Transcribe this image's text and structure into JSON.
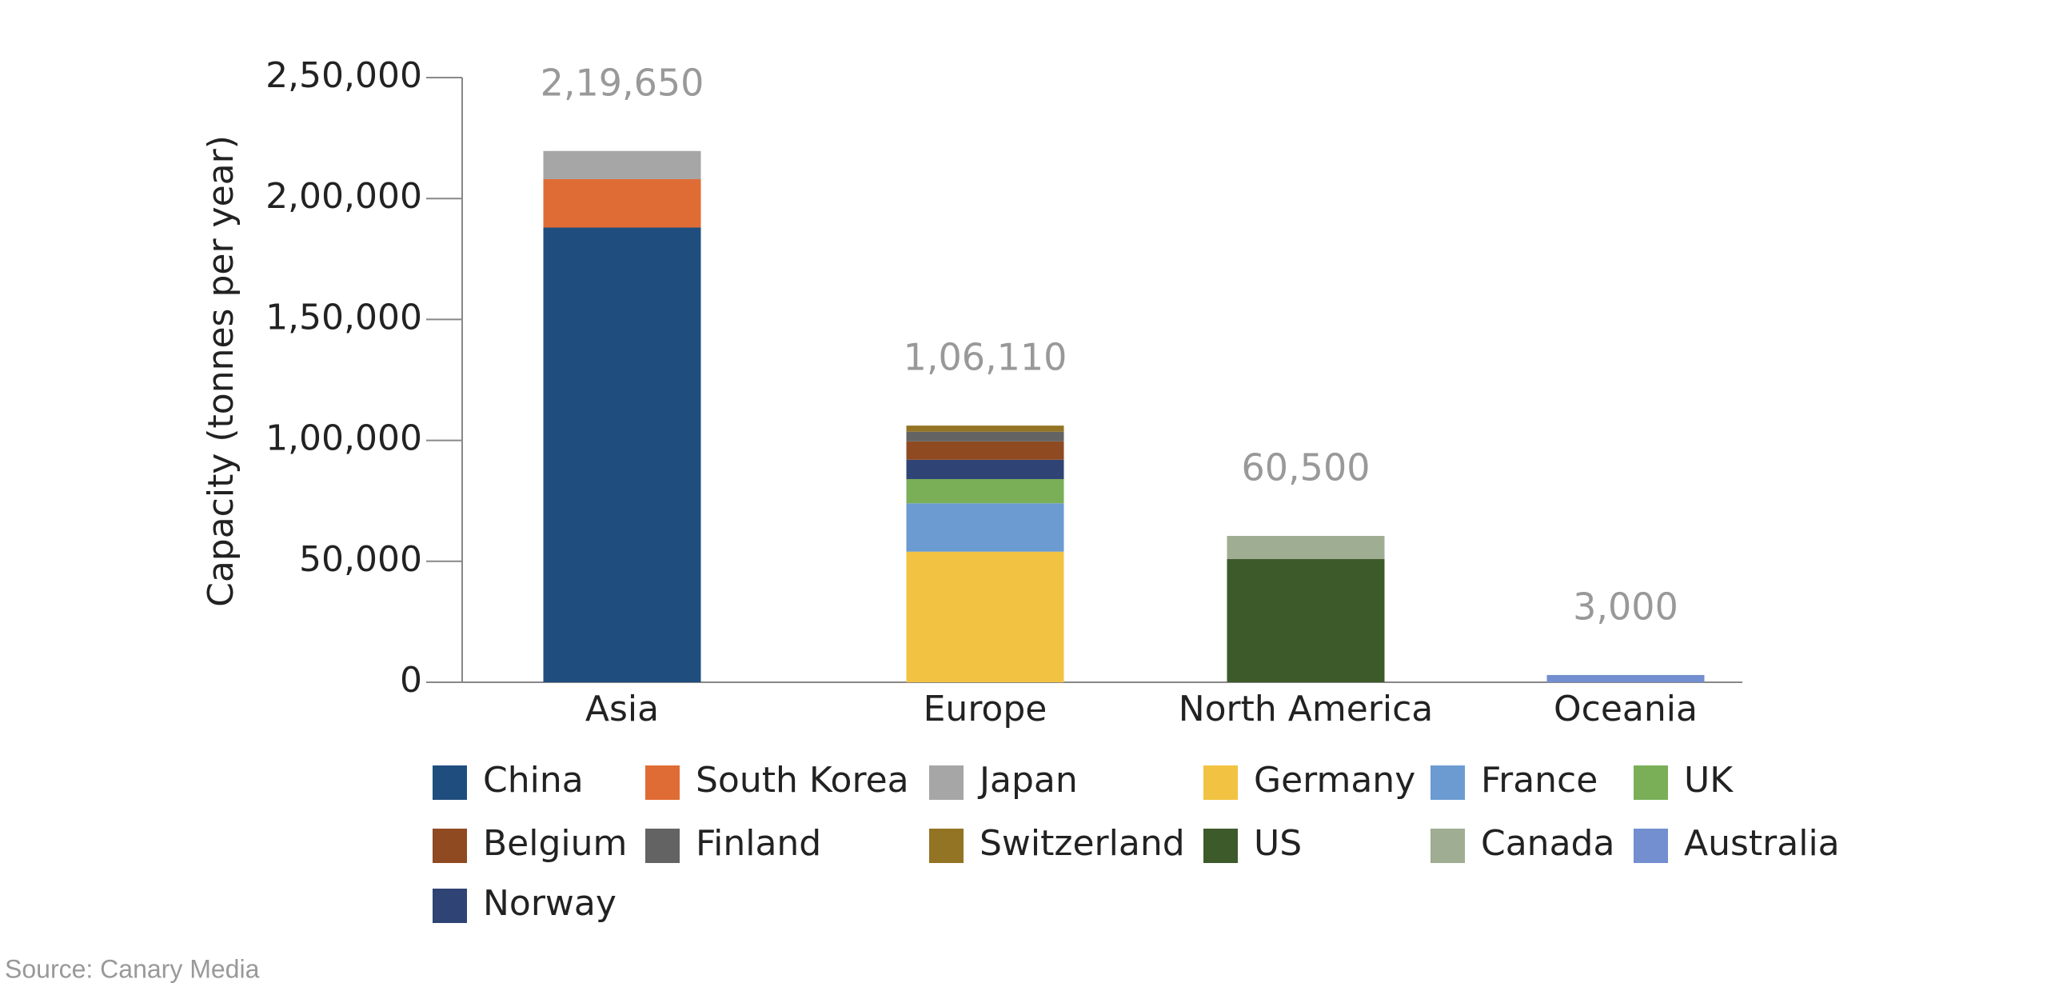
{
  "chart_data": {
    "type": "stacked_bar",
    "y_label": "Capacity (tonnes per year)",
    "source": "Source: Canary Media",
    "categories": [
      "Asia",
      "Europe",
      "North America",
      "Oceania"
    ],
    "series": [
      {
        "name": "China",
        "color": "#1f4e7e",
        "values": [
          188000,
          null,
          null,
          null
        ]
      },
      {
        "name": "South Korea",
        "color": "#e06c35",
        "values": [
          20000,
          null,
          null,
          null
        ]
      },
      {
        "name": "Japan",
        "color": "#a6a6a6",
        "values": [
          11650,
          null,
          null,
          null
        ]
      },
      {
        "name": "Germany",
        "color": "#f2c342",
        "values": [
          null,
          54000,
          null,
          null
        ]
      },
      {
        "name": "France",
        "color": "#6c9bd2",
        "values": [
          null,
          20000,
          null,
          null
        ]
      },
      {
        "name": "UK",
        "color": "#7aaf58",
        "values": [
          null,
          10000,
          null,
          null
        ]
      },
      {
        "name": "Belgium",
        "color": "#8f4a22",
        "values": [
          null,
          7600,
          null,
          null
        ]
      },
      {
        "name": "Finland",
        "color": "#636363",
        "values": [
          null,
          4000,
          null,
          null
        ]
      },
      {
        "name": "Switzerland",
        "color": "#937424",
        "values": [
          null,
          2510,
          null,
          null
        ]
      },
      {
        "name": "US",
        "color": "#3d5a2a",
        "values": [
          null,
          null,
          51000,
          null
        ]
      },
      {
        "name": "Canada",
        "color": "#9fad92",
        "values": [
          null,
          null,
          9500,
          null
        ]
      },
      {
        "name": "Australia",
        "color": "#738fd0",
        "values": [
          null,
          null,
          null,
          3000
        ]
      },
      {
        "name": "Norway",
        "color": "#2f4474",
        "values": [
          null,
          8000,
          null,
          null
        ]
      }
    ],
    "totals": [
      219650,
      106110,
      60500,
      3000
    ],
    "total_labels": [
      "2,19,650",
      "1,06,110",
      "60,500",
      "3,000"
    ],
    "ylim": [
      0,
      250000
    ],
    "yticks": [
      0,
      {
        "value": 50000,
        "label": "50,000"
      },
      {
        "value": 100000,
        "label": "1,00,000"
      },
      {
        "value": 150000,
        "label": "1,50,000"
      },
      {
        "value": 200000,
        "label": "2,00,000"
      },
      {
        "value": 250000,
        "label": "2,50,000"
      }
    ]
  }
}
